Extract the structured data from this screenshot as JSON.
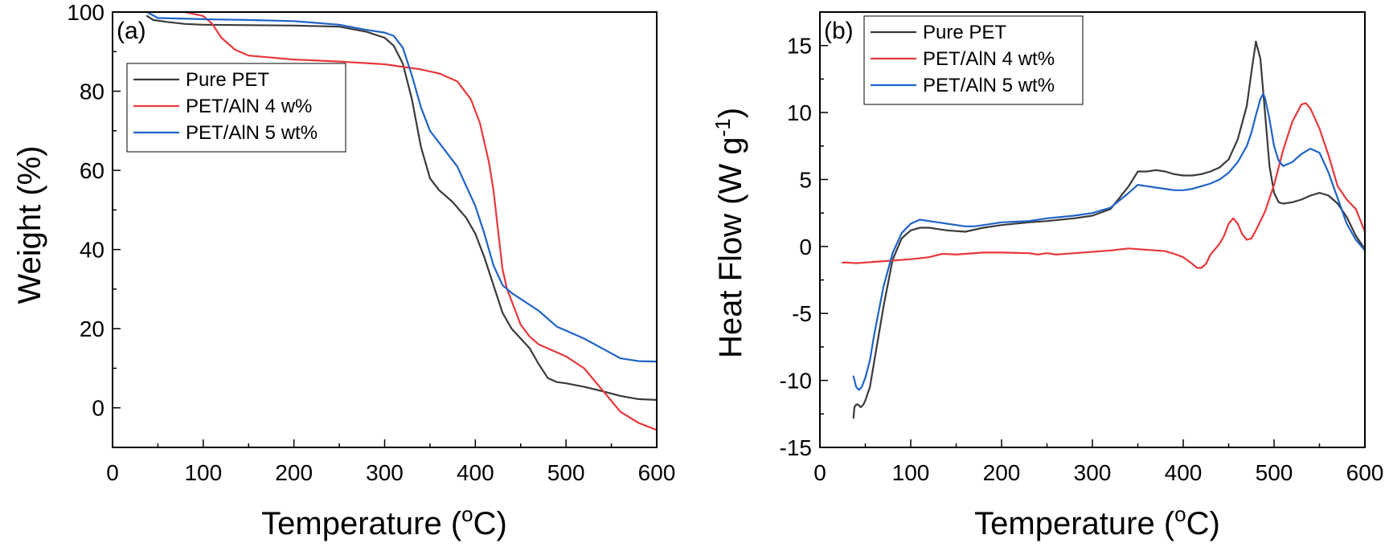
{
  "chart_data": [
    {
      "type": "line",
      "panel_label": "(a)",
      "xlabel_main": "Temperature (",
      "xlabel_sup": "o",
      "xlabel_end": "C)",
      "ylabel": "Weight (%)",
      "ylabel_sup": "",
      "ylabel_end": "",
      "xlim": [
        0,
        600
      ],
      "ylim": [
        -10,
        100
      ],
      "xticks": [
        0,
        100,
        200,
        300,
        400,
        500,
        600
      ],
      "yticks": [
        0,
        20,
        40,
        60,
        80,
        100
      ],
      "grid": false,
      "legend_position": "upper-left",
      "series": [
        {
          "name": "Pure PET",
          "color": "#3a3a3a",
          "x": [
            38,
            45,
            60,
            80,
            100,
            150,
            200,
            250,
            280,
            300,
            310,
            320,
            330,
            340,
            350,
            360,
            375,
            390,
            400,
            410,
            420,
            430,
            440,
            450,
            460,
            470,
            480,
            490,
            500,
            520,
            540,
            560,
            580,
            600
          ],
          "y": [
            99,
            98,
            97.5,
            97,
            96.8,
            96.7,
            96.6,
            96.3,
            95,
            93.5,
            91.5,
            87,
            78,
            66,
            58,
            55,
            52,
            48,
            44,
            38,
            31,
            24,
            20,
            17.5,
            15,
            11,
            7.5,
            6.5,
            6.2,
            5.3,
            4.2,
            3,
            2.2,
            2
          ]
        },
        {
          "name": "PET/AlN 4 w%",
          "color": "#e8383b",
          "x": [
            38,
            60,
            80,
            100,
            110,
            120,
            135,
            150,
            200,
            250,
            300,
            340,
            360,
            380,
            395,
            405,
            415,
            420,
            425,
            430,
            435,
            440,
            445,
            450,
            460,
            470,
            480,
            490,
            500,
            520,
            540,
            560,
            580,
            600
          ],
          "y": [
            100,
            100,
            100,
            99,
            97,
            93.5,
            90.5,
            89,
            88,
            87.5,
            86.8,
            85.5,
            84.5,
            82.5,
            78,
            72,
            62,
            55,
            45,
            35,
            30,
            27,
            24,
            21,
            18,
            16,
            15,
            14,
            13,
            10,
            4.5,
            -1,
            -3.8,
            -5.6
          ]
        },
        {
          "name": "PET/AlN 5 wt%",
          "color": "#1f63c8",
          "x": [
            38,
            50,
            100,
            150,
            200,
            250,
            280,
            300,
            310,
            320,
            330,
            340,
            350,
            360,
            380,
            400,
            410,
            420,
            430,
            440,
            450,
            460,
            470,
            480,
            490,
            500,
            520,
            540,
            560,
            580,
            600
          ],
          "y": [
            100,
            98.5,
            98.2,
            98,
            97.7,
            96.8,
            95.5,
            94.8,
            94,
            91,
            84,
            76,
            70,
            67,
            61,
            51,
            44,
            36,
            31,
            29,
            27.5,
            26,
            24.5,
            22.5,
            20.5,
            19.5,
            17.5,
            15,
            12.5,
            11.8,
            11.7
          ]
        }
      ]
    },
    {
      "type": "line",
      "panel_label": "(b)",
      "xlabel_main": "Temperature (",
      "xlabel_sup": "o",
      "xlabel_end": "C)",
      "ylabel": "Heat Flow (W g",
      "ylabel_sup": "-1",
      "ylabel_end": ")",
      "xlim": [
        0,
        600
      ],
      "ylim": [
        -15,
        17.5
      ],
      "xticks": [
        0,
        100,
        200,
        300,
        400,
        500,
        600
      ],
      "yticks": [
        -15,
        -10,
        -5,
        0,
        5,
        10,
        15
      ],
      "grid": false,
      "legend_position": "upper-left",
      "series": [
        {
          "name": "Pure PET",
          "color": "#3a3a3a",
          "x": [
            37,
            38,
            40,
            42,
            45,
            48,
            50,
            55,
            60,
            70,
            80,
            90,
            100,
            110,
            120,
            130,
            140,
            160,
            180,
            200,
            230,
            250,
            280,
            300,
            320,
            340,
            350,
            360,
            370,
            380,
            390,
            400,
            410,
            420,
            430,
            440,
            450,
            460,
            470,
            475,
            480,
            485,
            490,
            495,
            500,
            505,
            510,
            520,
            530,
            540,
            550,
            560,
            570,
            580,
            590,
            600
          ],
          "y": [
            -12.8,
            -12,
            -11.8,
            -11.8,
            -12,
            -11.8,
            -11.5,
            -10.5,
            -8.5,
            -4.5,
            -1,
            0.6,
            1.2,
            1.4,
            1.4,
            1.3,
            1.2,
            1.1,
            1.4,
            1.6,
            1.8,
            1.9,
            2.1,
            2.3,
            2.8,
            4.5,
            5.6,
            5.6,
            5.7,
            5.6,
            5.4,
            5.3,
            5.3,
            5.4,
            5.6,
            5.9,
            6.5,
            8,
            10.5,
            13,
            15.3,
            14,
            10,
            6,
            4,
            3.3,
            3.2,
            3.3,
            3.5,
            3.8,
            4,
            3.8,
            3.2,
            2.2,
            0.8,
            -0.2
          ]
        },
        {
          "name": "PET/AlN 4 wt%",
          "color": "#e8383b",
          "x": [
            25,
            30,
            40,
            60,
            80,
            100,
            120,
            135,
            150,
            180,
            200,
            230,
            240,
            250,
            260,
            280,
            300,
            320,
            340,
            350,
            360,
            370,
            380,
            390,
            400,
            410,
            415,
            420,
            425,
            430,
            440,
            445,
            450,
            455,
            460,
            465,
            470,
            475,
            480,
            490,
            500,
            510,
            520,
            530,
            535,
            540,
            550,
            560,
            570,
            580,
            590,
            600
          ],
          "y": [
            -1.2,
            -1.2,
            -1.25,
            -1.15,
            -1.05,
            -0.95,
            -0.8,
            -0.55,
            -0.6,
            -0.45,
            -0.45,
            -0.5,
            -0.6,
            -0.5,
            -0.6,
            -0.5,
            -0.4,
            -0.3,
            -0.15,
            -0.2,
            -0.25,
            -0.3,
            -0.35,
            -0.55,
            -0.8,
            -1.3,
            -1.6,
            -1.6,
            -1.3,
            -0.6,
            0.2,
            0.8,
            1.7,
            2.1,
            1.7,
            0.9,
            0.5,
            0.6,
            1.2,
            2.6,
            4.6,
            7.2,
            9.3,
            10.6,
            10.7,
            10.3,
            8.8,
            6.8,
            4.5,
            3.5,
            2.8,
            1.1
          ]
        },
        {
          "name": "PET/AlN 5 wt%",
          "color": "#1f63c8",
          "x": [
            37,
            40,
            43,
            46,
            50,
            55,
            60,
            70,
            80,
            90,
            100,
            110,
            120,
            130,
            140,
            150,
            160,
            170,
            180,
            200,
            230,
            250,
            280,
            300,
            320,
            340,
            350,
            360,
            370,
            380,
            390,
            400,
            410,
            420,
            430,
            440,
            450,
            460,
            470,
            475,
            480,
            485,
            488,
            490,
            495,
            500,
            505,
            510,
            520,
            530,
            540,
            550,
            560,
            570,
            580,
            590,
            600
          ],
          "y": [
            -9.7,
            -10.5,
            -10.7,
            -10.5,
            -9.8,
            -8.5,
            -6.5,
            -3,
            -0.5,
            1,
            1.7,
            2,
            1.9,
            1.8,
            1.7,
            1.6,
            1.5,
            1.5,
            1.6,
            1.8,
            1.9,
            2.1,
            2.3,
            2.5,
            2.9,
            4,
            4.6,
            4.5,
            4.4,
            4.3,
            4.2,
            4.2,
            4.3,
            4.5,
            4.7,
            5,
            5.5,
            6.3,
            7.5,
            8.5,
            9.8,
            11,
            11.4,
            11.1,
            9.5,
            7.5,
            6.4,
            6,
            6.3,
            6.9,
            7.3,
            7,
            5.5,
            3.6,
            1.7,
            0.5,
            -0.3
          ]
        }
      ]
    }
  ]
}
